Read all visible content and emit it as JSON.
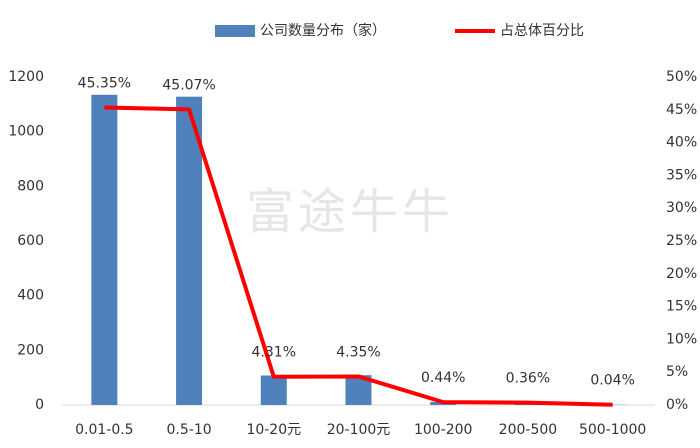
{
  "chart_data": {
    "type": "bar-line",
    "categories": [
      "0.01-0.5",
      "0.5-10",
      "10-20元",
      "20-100元",
      "100-200",
      "200-500",
      "500-1000"
    ],
    "series": [
      {
        "name": "公司数量分布（家）",
        "type": "bar",
        "color": "#4f81bd",
        "values": [
          1135,
          1128,
          108,
          109,
          11,
          9,
          1
        ]
      },
      {
        "name": "占总体百分比",
        "type": "line",
        "axis": "y2",
        "color": "#ff0000",
        "values": [
          45.35,
          45.07,
          4.31,
          4.35,
          0.44,
          0.36,
          0.04
        ],
        "value_labels": [
          "45.35%",
          "45.07%",
          "4.31%",
          "4.35%",
          "0.44%",
          "0.36%",
          "0.04%"
        ]
      }
    ],
    "ylim": [
      0,
      1200
    ],
    "yticks": [
      0,
      200,
      400,
      600,
      800,
      1000,
      1200
    ],
    "y2lim": [
      0,
      50
    ],
    "y2ticks": [
      {
        "value": 0,
        "label": "0%"
      },
      {
        "value": 5,
        "label": "5%"
      },
      {
        "value": 10,
        "label": "10%"
      },
      {
        "value": 15,
        "label": "15%"
      },
      {
        "value": 20,
        "label": "20%"
      },
      {
        "value": 25,
        "label": "25%"
      },
      {
        "value": 30,
        "label": "30%"
      },
      {
        "value": 35,
        "label": "35%"
      },
      {
        "value": 40,
        "label": "40%"
      },
      {
        "value": 45,
        "label": "45%"
      },
      {
        "value": 50,
        "label": "50%"
      }
    ],
    "watermark": "富途牛牛",
    "legend": "top",
    "grid": false
  }
}
